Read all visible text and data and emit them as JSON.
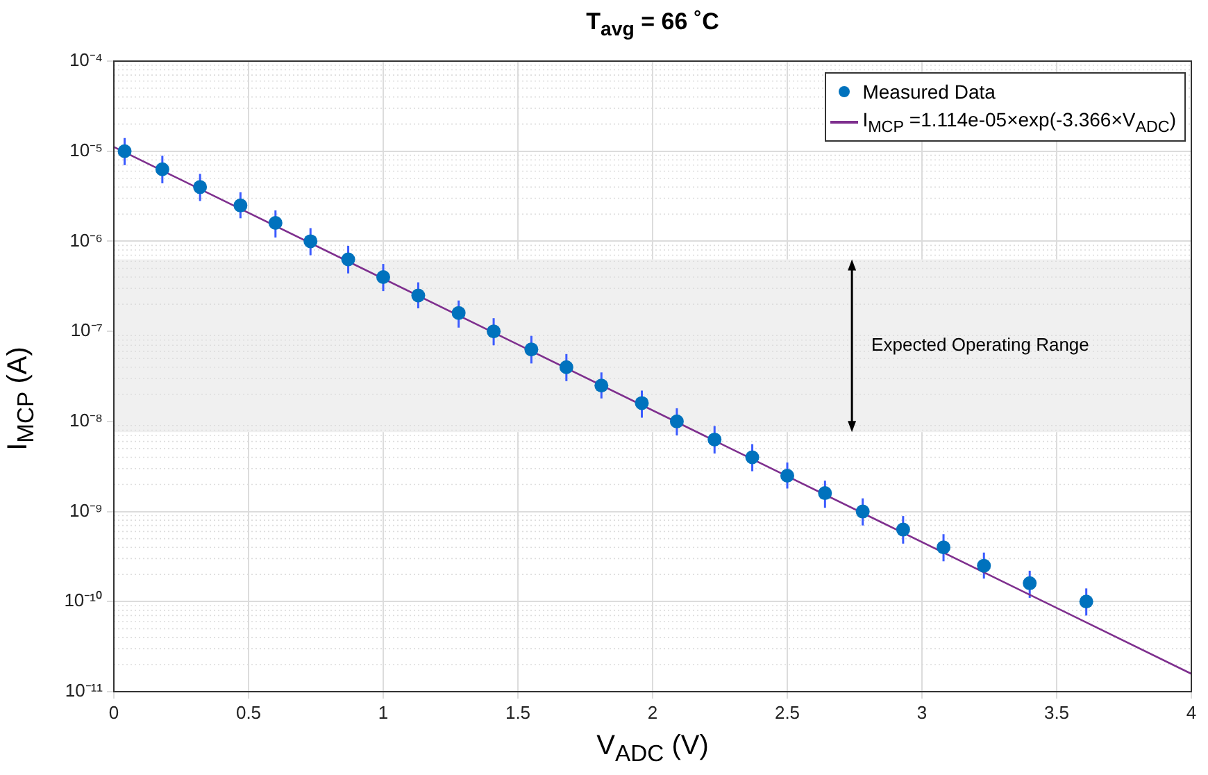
{
  "chart_data": {
    "type": "scatter",
    "title": "T$_{avg}$ = 66 ˚C",
    "xlabel": "V$_{ADC}$ (V)",
    "ylabel": "I$_{MCP}$ (A)",
    "log": "y",
    "grid": true,
    "legend": "top right",
    "marker": "circle",
    "xlim": [
      0,
      4
    ],
    "xticks": [
      0,
      0.5,
      1,
      1.5,
      2,
      2.5,
      3,
      3.5,
      4
    ],
    "ylim": [
      1e-11,
      0.0001
    ],
    "yticks": [
      {
        "value": 1e-11,
        "label": "10⁻¹¹"
      },
      {
        "value": 1e-10,
        "label": "10⁻¹⁰"
      },
      {
        "value": 1e-09,
        "label": "10⁻⁹"
      },
      {
        "value": 1e-08,
        "label": "10⁻⁸"
      },
      {
        "value": 1e-07,
        "label": "10⁻⁷"
      },
      {
        "value": 1e-06,
        "label": "10⁻⁶"
      },
      {
        "value": 1e-05,
        "label": "10⁻⁵"
      },
      {
        "value": 0.0001,
        "label": "10⁻⁴"
      }
    ],
    "bands": [
      {
        "axis": "y",
        "from": 7.6e-09,
        "to": 6.3e-07,
        "label": "Expected Operating Range",
        "color": "#f0f0f0"
      }
    ],
    "series": [
      {
        "name": "Measured Data",
        "type": "scatter",
        "color": "#0072bd",
        "x": [
          0.04,
          0.18,
          0.32,
          0.47,
          0.6,
          0.73,
          0.87,
          1.0,
          1.13,
          1.28,
          1.41,
          1.55,
          1.68,
          1.81,
          1.96,
          2.09,
          2.23,
          2.37,
          2.5,
          2.64,
          2.78,
          2.93,
          3.08,
          3.23,
          3.4,
          3.61
        ],
        "values": [
          1e-05,
          6.3e-06,
          4e-06,
          2.5e-06,
          1.6e-06,
          1e-06,
          6.3e-07,
          4e-07,
          2.5e-07,
          1.6e-07,
          1e-07,
          6.3e-08,
          4e-08,
          2.5e-08,
          1.6e-08,
          1e-08,
          6.3e-09,
          4e-09,
          2.5e-09,
          1.6e-09,
          1e-09,
          6.3e-10,
          4e-10,
          2.5e-10,
          1.6e-10,
          1e-10
        ],
        "errors": [
          [
            7e-06,
            1.4e-05
          ],
          [
            4.4e-06,
            8.9e-06
          ],
          [
            2.8e-06,
            5.6e-06
          ],
          [
            1.8e-06,
            3.5e-06
          ],
          [
            1.1e-06,
            2.2e-06
          ],
          [
            7e-07,
            1.4e-06
          ],
          [
            4.4e-07,
            8.9e-07
          ],
          [
            2.8e-07,
            5.6e-07
          ],
          [
            1.8e-07,
            3.5e-07
          ],
          [
            1.1e-07,
            2.2e-07
          ],
          [
            7e-08,
            1.4e-07
          ],
          [
            4.4e-08,
            8.9e-08
          ],
          [
            2.8e-08,
            5.6e-08
          ],
          [
            1.8e-08,
            3.5e-08
          ],
          [
            1.1e-08,
            2.2e-08
          ],
          [
            7e-09,
            1.4e-08
          ],
          [
            4.4e-09,
            8.9e-09
          ],
          [
            2.8e-09,
            5.6e-09
          ],
          [
            1.8e-09,
            3.5e-09
          ],
          [
            1.1e-09,
            2.2e-09
          ],
          [
            7e-10,
            1.4e-09
          ],
          [
            4.4e-10,
            8.9e-10
          ],
          [
            2.8e-10,
            5.6e-10
          ],
          [
            1.8e-10,
            3.5e-10
          ],
          [
            1.1e-10,
            2.2e-10
          ],
          [
            7e-11,
            1.4e-10
          ]
        ]
      },
      {
        "name": "I$_{MCP}$ =1.114e-05×exp(-3.366×V$_{ADC}$)",
        "type": "line",
        "color": "#7e2f8e",
        "marker": "none",
        "line_style": "solid",
        "x": [
          0,
          4
        ],
        "values": [
          1.114e-05,
          1.58e-11
        ]
      }
    ]
  }
}
